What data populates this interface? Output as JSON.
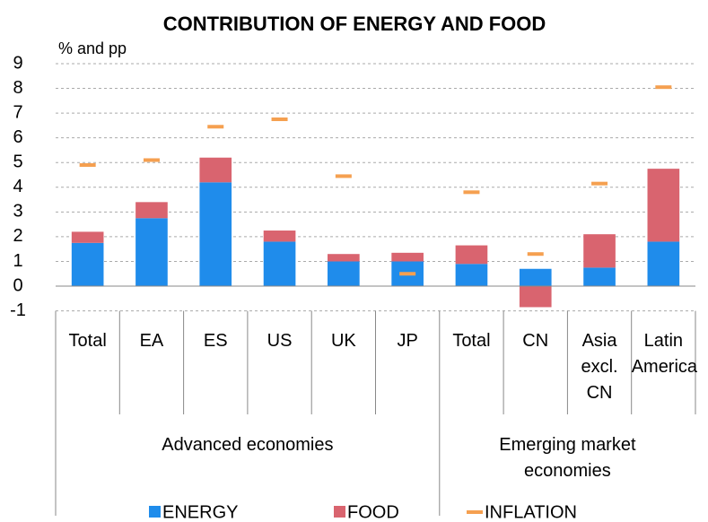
{
  "chart_data": {
    "type": "stacked_bar",
    "title": "CONTRIBUTION OF ENERGY AND FOOD",
    "y_label": "% and pp",
    "groups": [
      {
        "name": "Advanced economies",
        "categories": [
          "Total",
          "EA",
          "ES",
          "US",
          "UK",
          "JP"
        ]
      },
      {
        "name": "Emerging market economies",
        "categories": [
          "Total",
          "CN",
          "Asia excl. CN",
          "Latin America"
        ]
      }
    ],
    "series": [
      {
        "name": "ENERGY",
        "color": "#1f8ceb",
        "kind": "bar",
        "values": [
          1.75,
          2.75,
          4.2,
          1.8,
          1.0,
          1.0,
          0.9,
          0.7,
          0.75,
          1.8
        ]
      },
      {
        "name": "FOOD",
        "color": "#d9646f",
        "kind": "bar",
        "values": [
          0.45,
          0.65,
          1.0,
          0.45,
          0.3,
          0.35,
          0.75,
          -0.85,
          1.35,
          2.95
        ]
      },
      {
        "name": "INFLATION",
        "color": "#f5a050",
        "kind": "marker",
        "values": [
          4.9,
          5.1,
          6.45,
          6.75,
          4.45,
          0.5,
          3.8,
          1.3,
          4.15,
          8.05
        ]
      }
    ],
    "ylim": [
      -1,
      9
    ],
    "yticks": [
      -1,
      0,
      1,
      2,
      3,
      4,
      5,
      6,
      7,
      8,
      9
    ],
    "grid": true
  }
}
